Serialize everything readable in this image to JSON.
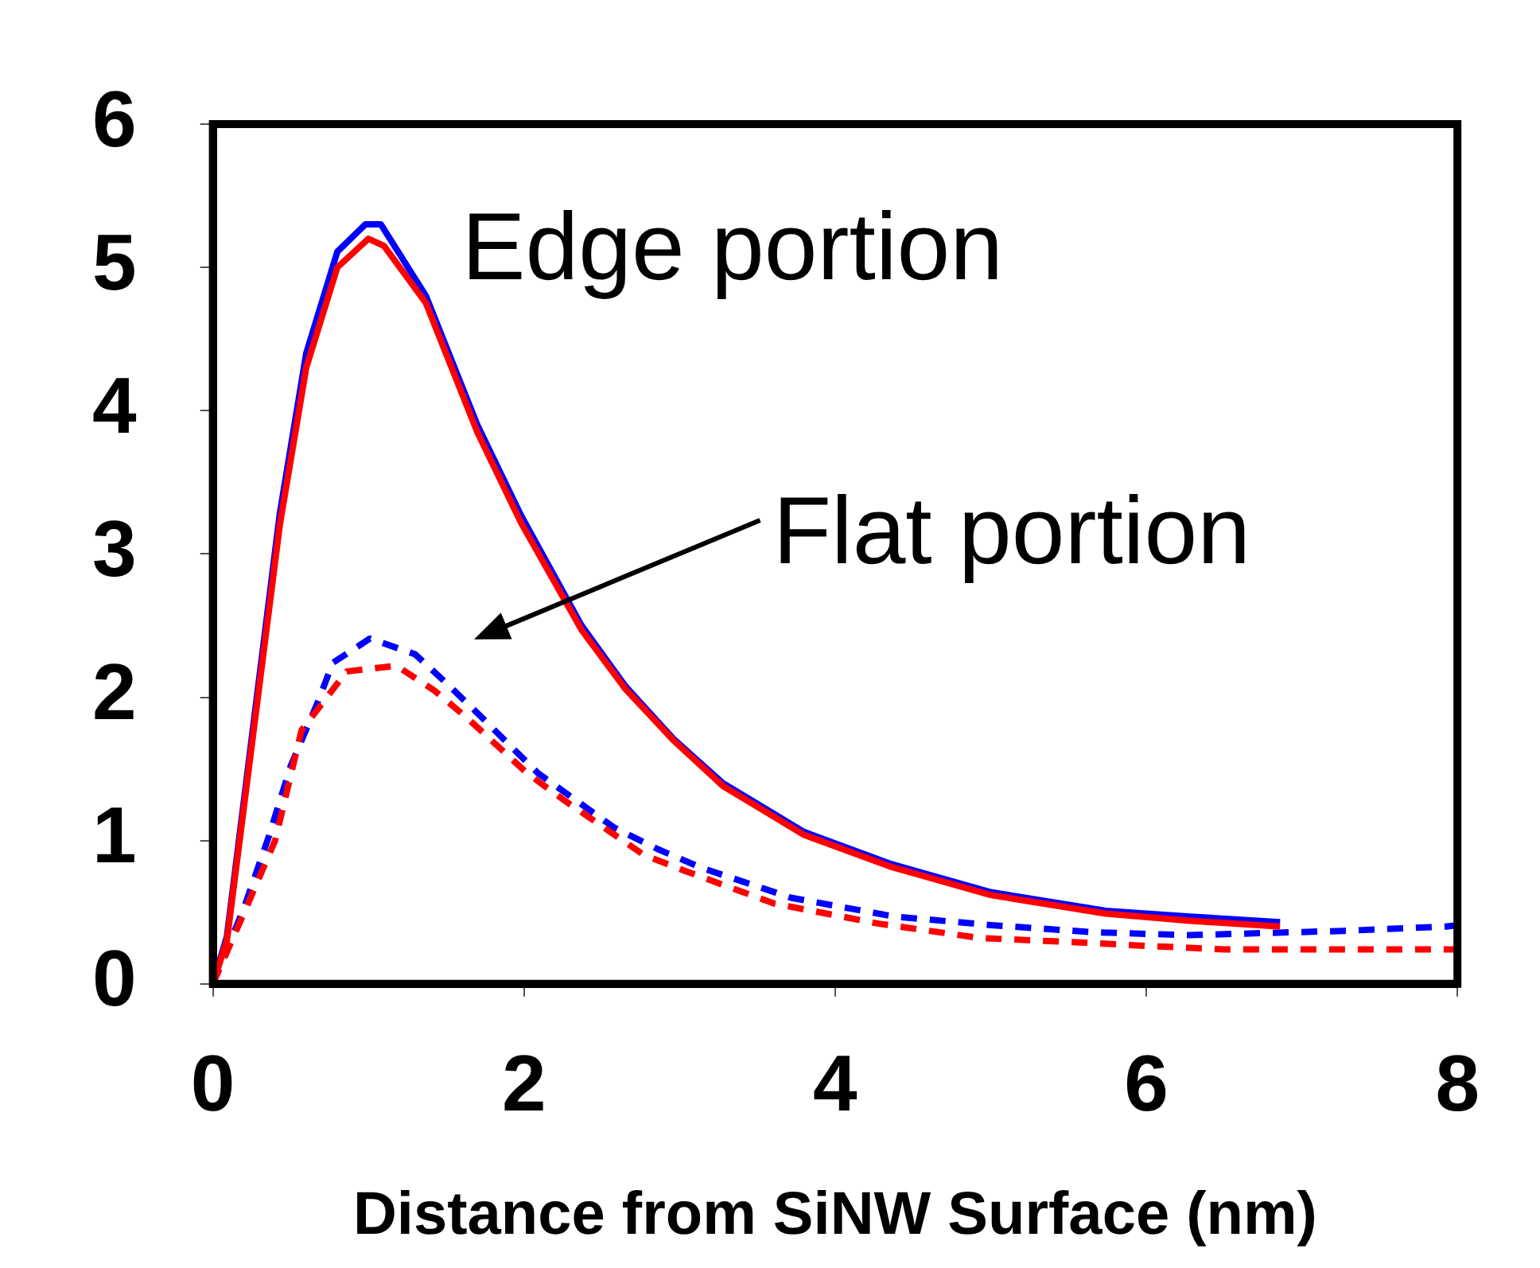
{
  "chart_data": {
    "type": "line",
    "xlabel": "Distance from SiNW Surface (nm)",
    "xlim": [
      0,
      8
    ],
    "xticks": [
      0,
      2,
      4,
      6,
      8
    ],
    "ylim": [
      0,
      6
    ],
    "yticks": [
      0,
      1,
      2,
      3,
      4,
      5,
      6
    ],
    "grid": false,
    "legend": false,
    "marker": "none",
    "annotations": [
      "Edge portion",
      "Flat portion"
    ],
    "series": [
      {
        "color": "#ff0000",
        "line_style": "solid",
        "x": [
          0,
          0.09,
          0.43,
          0.6,
          0.8,
          1.0,
          1.1,
          1.37,
          1.7,
          1.98,
          2.37,
          2.65,
          2.96,
          3.28,
          3.8,
          4.35,
          5.0,
          5.74,
          6.28,
          6.86
        ],
        "values": [
          0,
          0.3,
          3.2,
          4.3,
          5.0,
          5.2,
          5.15,
          4.75,
          3.85,
          3.22,
          2.47,
          2.06,
          1.7,
          1.38,
          1.04,
          0.82,
          0.62,
          0.49,
          0.44,
          0.4
        ]
      },
      {
        "color": "#0000ff",
        "line_style": "solid",
        "x": [
          0,
          0.09,
          0.43,
          0.6,
          0.8,
          0.98,
          1.08,
          1.37,
          1.7,
          1.98,
          2.37,
          2.65,
          2.96,
          3.28,
          3.8,
          4.35,
          5.0,
          5.74,
          6.28,
          6.86
        ],
        "values": [
          0,
          0.33,
          3.28,
          4.4,
          5.11,
          5.3,
          5.3,
          4.8,
          3.9,
          3.27,
          2.5,
          2.08,
          1.71,
          1.4,
          1.06,
          0.84,
          0.64,
          0.51,
          0.47,
          0.43
        ]
      },
      {
        "color": "#ff0000",
        "line_style": "dashed",
        "x": [
          0,
          0.21,
          0.4,
          0.57,
          0.86,
          1.18,
          1.42,
          1.63,
          2.02,
          2.26,
          2.77,
          3.03,
          3.61,
          4.28,
          4.93,
          5.55,
          5.91,
          6.5,
          7.82,
          8
        ],
        "values": [
          0,
          0.52,
          1.0,
          1.77,
          2.18,
          2.22,
          2.05,
          1.86,
          1.47,
          1.28,
          0.9,
          0.79,
          0.56,
          0.42,
          0.32,
          0.29,
          0.27,
          0.24,
          0.24,
          0.24
        ]
      },
      {
        "color": "#0000ff",
        "line_style": "dashed",
        "x": [
          0,
          0.2,
          0.36,
          0.5,
          0.68,
          0.77,
          1.01,
          1.3,
          1.5,
          1.7,
          2.09,
          2.58,
          2.86,
          3.14,
          3.72,
          4.38,
          5.0,
          5.66,
          6.28,
          7.27,
          7.93,
          8
        ],
        "values": [
          0,
          0.53,
          1.03,
          1.52,
          1.98,
          2.24,
          2.41,
          2.3,
          2.1,
          1.89,
          1.47,
          1.09,
          0.94,
          0.81,
          0.6,
          0.47,
          0.41,
          0.36,
          0.34,
          0.37,
          0.4,
          0.41
        ]
      }
    ]
  }
}
